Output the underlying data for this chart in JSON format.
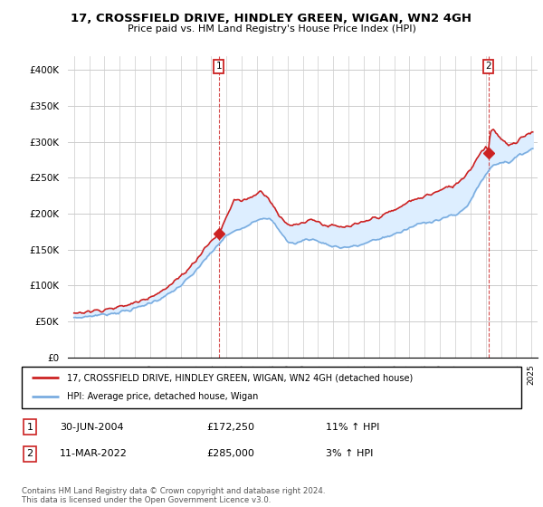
{
  "title": "17, CROSSFIELD DRIVE, HINDLEY GREEN, WIGAN, WN2 4GH",
  "subtitle": "Price paid vs. HM Land Registry's House Price Index (HPI)",
  "legend_label_red": "17, CROSSFIELD DRIVE, HINDLEY GREEN, WIGAN, WN2 4GH (detached house)",
  "legend_label_blue": "HPI: Average price, detached house, Wigan",
  "annotation1_label": "1",
  "annotation1_date": "30-JUN-2004",
  "annotation1_price": "£172,250",
  "annotation1_hpi": "11% ↑ HPI",
  "annotation2_label": "2",
  "annotation2_date": "11-MAR-2022",
  "annotation2_price": "£285,000",
  "annotation2_hpi": "3% ↑ HPI",
  "footnote": "Contains HM Land Registry data © Crown copyright and database right 2024.\nThis data is licensed under the Open Government Licence v3.0.",
  "hpi_color": "#7aade0",
  "hpi_fill_color": "#ddeeff",
  "price_color": "#cc2222",
  "annotation_color": "#cc2222",
  "background_color": "#ffffff",
  "grid_color": "#cccccc",
  "ylim": [
    0,
    420000
  ],
  "yticks": [
    0,
    50000,
    100000,
    150000,
    200000,
    250000,
    300000,
    350000,
    400000
  ],
  "sale1_year": 2004.5,
  "sale1_price": 172250,
  "sale2_year": 2022.17,
  "sale2_price": 285000
}
